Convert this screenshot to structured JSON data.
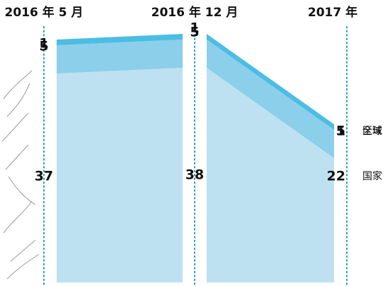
{
  "chart_data": {
    "type": "stacked-area",
    "categories": [
      "2016 年 5 月",
      "2016 年 12 月",
      "2017 年"
    ],
    "series": [
      {
        "name": "国家",
        "color": "#bde1f1",
        "values": [
          37,
          38,
          22
        ]
      },
      {
        "name": "区域",
        "color": "#8ccfea",
        "values": [
          5,
          5,
          5
        ]
      },
      {
        "name": "全球",
        "color": "#4cbde4",
        "values": [
          1,
          1,
          1
        ]
      }
    ]
  }
}
